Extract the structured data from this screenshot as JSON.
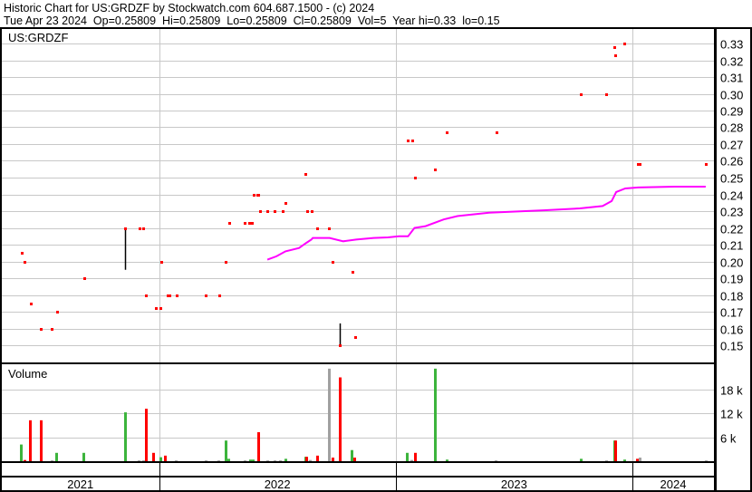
{
  "header": {
    "title": "Historic Chart for US:GRDZF by Stockwatch.com 604.687.1500 - (c) 2024",
    "quote": "Tue Apr 23 2024  Op=0.25809  Hi=0.25809  Lo=0.25809  Cl=0.25809  Vol=5  Year hi=0.33  lo=0.15"
  },
  "colors": {
    "up": "#3cb43c",
    "down": "#ff0000",
    "flat": "#a0a0a0",
    "close_dot": "#ff0000",
    "range_bar": "#000000",
    "moving_average": "#ff00ff",
    "grid": "#c8c8c8"
  },
  "chart_data": [
    {
      "type": "scatter",
      "title": "US:GRDZF",
      "x_type": "date",
      "xlim": [
        "2021-04-30",
        "2024-05-01"
      ],
      "ylim": [
        0.14,
        0.335
      ],
      "y_ticks": [
        "0.15",
        "0.16",
        "0.17",
        "0.18",
        "0.19",
        "0.20",
        "0.21",
        "0.22",
        "0.23",
        "0.24",
        "0.25",
        "0.26",
        "0.27",
        "0.28",
        "0.29",
        "0.30",
        "0.31",
        "0.32",
        "0.33"
      ],
      "x_tick_labels": [
        "2021",
        "2022",
        "2023",
        "2024"
      ],
      "grid": true,
      "points": [
        {
          "date": "2021-06-03",
          "close": 0.205
        },
        {
          "date": "2021-06-08",
          "close": 0.2
        },
        {
          "date": "2021-06-17",
          "close": 0.175
        },
        {
          "date": "2021-07-03",
          "close": 0.16
        },
        {
          "date": "2021-07-20",
          "close": 0.16
        },
        {
          "date": "2021-07-28",
          "close": 0.17
        },
        {
          "date": "2021-09-07",
          "close": 0.19
        },
        {
          "date": "2021-11-10",
          "close": 0.22,
          "high": 0.22,
          "low": 0.195
        },
        {
          "date": "2021-12-02",
          "close": 0.22
        },
        {
          "date": "2021-12-08",
          "close": 0.22
        },
        {
          "date": "2021-12-12",
          "close": 0.18
        },
        {
          "date": "2021-12-27",
          "close": 0.172
        },
        {
          "date": "2022-01-03",
          "close": 0.172
        },
        {
          "date": "2022-01-05",
          "close": 0.2
        },
        {
          "date": "2022-01-14",
          "close": 0.18
        },
        {
          "date": "2022-01-17",
          "close": 0.18
        },
        {
          "date": "2022-01-28",
          "close": 0.18
        },
        {
          "date": "2022-03-14",
          "close": 0.18
        },
        {
          "date": "2022-04-04",
          "close": 0.18
        },
        {
          "date": "2022-04-13",
          "close": 0.2
        },
        {
          "date": "2022-04-19",
          "close": 0.223
        },
        {
          "date": "2022-05-13",
          "close": 0.223
        },
        {
          "date": "2022-05-20",
          "close": 0.223
        },
        {
          "date": "2022-05-24",
          "close": 0.223
        },
        {
          "date": "2022-05-27",
          "close": 0.24
        },
        {
          "date": "2022-06-01",
          "close": 0.24
        },
        {
          "date": "2022-06-03",
          "close": 0.24
        },
        {
          "date": "2022-06-06",
          "close": 0.23
        },
        {
          "date": "2022-06-17",
          "close": 0.23
        },
        {
          "date": "2022-06-28",
          "close": 0.23
        },
        {
          "date": "2022-07-11",
          "close": 0.23
        },
        {
          "date": "2022-07-15",
          "close": 0.235
        },
        {
          "date": "2022-08-15",
          "close": 0.252
        },
        {
          "date": "2022-08-17",
          "close": 0.23
        },
        {
          "date": "2022-08-24",
          "close": 0.23
        },
        {
          "date": "2022-09-02",
          "close": 0.22
        },
        {
          "date": "2022-09-20",
          "close": 0.22
        },
        {
          "date": "2022-09-26",
          "close": 0.2
        },
        {
          "date": "2022-10-07",
          "close": 0.15,
          "high": 0.163,
          "low": 0.15
        },
        {
          "date": "2022-10-26",
          "close": 0.194
        },
        {
          "date": "2022-10-31",
          "close": 0.155
        },
        {
          "date": "2023-01-20",
          "close": 0.272
        },
        {
          "date": "2023-01-27",
          "close": 0.272
        },
        {
          "date": "2023-01-31",
          "close": 0.25
        },
        {
          "date": "2023-03-02",
          "close": 0.255
        },
        {
          "date": "2023-03-21",
          "close": 0.277
        },
        {
          "date": "2023-06-05",
          "close": 0.277
        },
        {
          "date": "2023-10-13",
          "close": 0.3
        },
        {
          "date": "2023-11-21",
          "close": 0.3
        },
        {
          "date": "2023-12-04",
          "close": 0.328
        },
        {
          "date": "2023-12-06",
          "close": 0.323
        },
        {
          "date": "2023-12-20",
          "close": 0.33
        },
        {
          "date": "2024-01-09",
          "close": 0.258
        },
        {
          "date": "2024-01-12",
          "close": 0.258
        },
        {
          "date": "2024-04-23",
          "close": 0.25809
        }
      ],
      "moving_average": [
        {
          "date": "2022-06-17",
          "value": 0.201
        },
        {
          "date": "2022-07-01",
          "value": 0.203
        },
        {
          "date": "2022-07-15",
          "value": 0.206
        },
        {
          "date": "2022-08-05",
          "value": 0.208
        },
        {
          "date": "2022-08-16",
          "value": 0.211
        },
        {
          "date": "2022-08-24",
          "value": 0.213
        },
        {
          "date": "2022-08-26",
          "value": 0.214
        },
        {
          "date": "2022-09-21",
          "value": 0.214
        },
        {
          "date": "2022-10-12",
          "value": 0.212
        },
        {
          "date": "2022-11-01",
          "value": 0.213
        },
        {
          "date": "2022-11-28",
          "value": 0.214
        },
        {
          "date": "2022-12-20",
          "value": 0.2143
        },
        {
          "date": "2023-01-06",
          "value": 0.215
        },
        {
          "date": "2023-01-20",
          "value": 0.215
        },
        {
          "date": "2023-01-30",
          "value": 0.22
        },
        {
          "date": "2023-02-16",
          "value": 0.221
        },
        {
          "date": "2023-03-16",
          "value": 0.225
        },
        {
          "date": "2023-04-06",
          "value": 0.227
        },
        {
          "date": "2023-05-25",
          "value": 0.229
        },
        {
          "date": "2023-08-17",
          "value": 0.2305
        },
        {
          "date": "2023-10-12",
          "value": 0.2316
        },
        {
          "date": "2023-11-16",
          "value": 0.233
        },
        {
          "date": "2023-11-30",
          "value": 0.236
        },
        {
          "date": "2023-12-07",
          "value": 0.2414
        },
        {
          "date": "2023-12-21",
          "value": 0.2435
        },
        {
          "date": "2024-01-10",
          "value": 0.2441
        },
        {
          "date": "2024-03-06",
          "value": 0.2446
        },
        {
          "date": "2024-04-23",
          "value": 0.2446
        }
      ]
    },
    {
      "type": "bar",
      "title": "Volume",
      "x_type": "date",
      "ylim": [
        0,
        24000
      ],
      "y_ticks": [
        {
          "value": 6000,
          "label": "6 k"
        },
        {
          "value": 12000,
          "label": "12 k"
        },
        {
          "value": 18000,
          "label": "18 k"
        }
      ],
      "grid": true,
      "bars": [
        {
          "date": "2021-06-02",
          "volume": 4200,
          "dir": "up"
        },
        {
          "date": "2021-06-07",
          "volume": 300,
          "dir": "down"
        },
        {
          "date": "2021-06-16",
          "volume": 10300,
          "dir": "down"
        },
        {
          "date": "2021-07-03",
          "volume": 10300,
          "dir": "down"
        },
        {
          "date": "2021-07-19",
          "volume": 200,
          "dir": "flat"
        },
        {
          "date": "2021-07-27",
          "volume": 2100,
          "dir": "up"
        },
        {
          "date": "2021-09-06",
          "volume": 2100,
          "dir": "up"
        },
        {
          "date": "2021-11-10",
          "volume": 12300,
          "dir": "up"
        },
        {
          "date": "2021-12-01",
          "volume": 200,
          "dir": "flat"
        },
        {
          "date": "2021-12-07",
          "volume": 200,
          "dir": "flat"
        },
        {
          "date": "2021-12-11",
          "volume": 13200,
          "dir": "down"
        },
        {
          "date": "2021-12-23",
          "volume": 2100,
          "dir": "down"
        },
        {
          "date": "2022-01-03",
          "volume": 1000,
          "dir": "up"
        },
        {
          "date": "2022-01-10",
          "volume": 1400,
          "dir": "down"
        },
        {
          "date": "2022-01-27",
          "volume": 200,
          "dir": "flat"
        },
        {
          "date": "2022-03-14",
          "volume": 200,
          "dir": "flat"
        },
        {
          "date": "2022-04-03",
          "volume": 200,
          "dir": "flat"
        },
        {
          "date": "2022-04-13",
          "volume": 5200,
          "dir": "up"
        },
        {
          "date": "2022-04-18",
          "volume": 600,
          "dir": "up"
        },
        {
          "date": "2022-05-13",
          "volume": 200,
          "dir": "flat"
        },
        {
          "date": "2022-05-21",
          "volume": 400,
          "dir": "up"
        },
        {
          "date": "2022-05-25",
          "volume": 400,
          "dir": "up"
        },
        {
          "date": "2022-06-03",
          "volume": 7300,
          "dir": "down"
        },
        {
          "date": "2022-06-17",
          "volume": 200,
          "dir": "flat"
        },
        {
          "date": "2022-06-28",
          "volume": 200,
          "dir": "flat"
        },
        {
          "date": "2022-07-06",
          "volume": 200,
          "dir": "flat"
        },
        {
          "date": "2022-07-15",
          "volume": 600,
          "dir": "up"
        },
        {
          "date": "2022-08-14",
          "volume": 1100,
          "dir": "up"
        },
        {
          "date": "2022-08-16",
          "volume": 1100,
          "dir": "down"
        },
        {
          "date": "2022-08-22",
          "volume": 300,
          "dir": "flat"
        },
        {
          "date": "2022-09-02",
          "volume": 1400,
          "dir": "down"
        },
        {
          "date": "2022-09-20",
          "volume": 23300,
          "dir": "flat"
        },
        {
          "date": "2022-09-26",
          "volume": 900,
          "dir": "down"
        },
        {
          "date": "2022-10-07",
          "volume": 21100,
          "dir": "down"
        },
        {
          "date": "2022-10-25",
          "volume": 2800,
          "dir": "up"
        },
        {
          "date": "2022-10-29",
          "volume": 900,
          "dir": "down"
        },
        {
          "date": "2023-01-18",
          "volume": 2100,
          "dir": "up"
        },
        {
          "date": "2023-01-25",
          "volume": 300,
          "dir": "flat"
        },
        {
          "date": "2023-01-30",
          "volume": 2100,
          "dir": "down"
        },
        {
          "date": "2023-03-02",
          "volume": 23300,
          "dir": "up"
        },
        {
          "date": "2023-03-21",
          "volume": 400,
          "dir": "up"
        },
        {
          "date": "2023-06-04",
          "volume": 200,
          "dir": "flat"
        },
        {
          "date": "2023-10-13",
          "volume": 600,
          "dir": "up"
        },
        {
          "date": "2023-11-21",
          "volume": 200,
          "dir": "flat"
        },
        {
          "date": "2023-12-04",
          "volume": 5200,
          "dir": "up"
        },
        {
          "date": "2023-12-06",
          "volume": 5200,
          "dir": "down"
        },
        {
          "date": "2023-12-20",
          "volume": 400,
          "dir": "up"
        },
        {
          "date": "2024-01-08",
          "volume": 600,
          "dir": "down"
        },
        {
          "date": "2024-01-12",
          "volume": 900,
          "dir": "flat"
        },
        {
          "date": "2024-04-23",
          "volume": 200,
          "dir": "flat"
        }
      ]
    }
  ]
}
